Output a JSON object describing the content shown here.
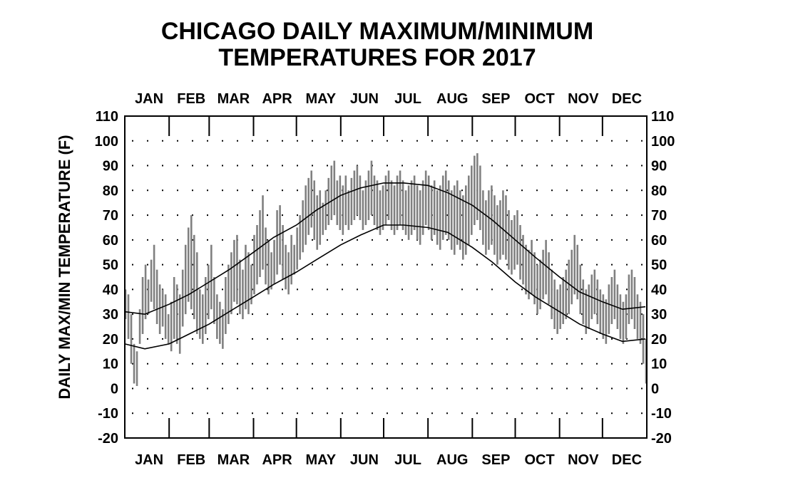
{
  "chart_data": {
    "type": "line",
    "title_lines": [
      "CHICAGO DAILY MAXIMUM/MINIMUM",
      "TEMPERATURES FOR 2017"
    ],
    "ylabel": "DAILY MAX/MIN TEMPERATURE (F)",
    "xlabel": "",
    "year": 2017,
    "x_unit": "day of year",
    "xlim": [
      1,
      365
    ],
    "ylim": [
      -20,
      110
    ],
    "y_ticks": [
      -20,
      -10,
      0,
      10,
      20,
      30,
      40,
      50,
      60,
      70,
      80,
      90,
      100,
      110
    ],
    "month_labels": [
      "JAN",
      "FEB",
      "MAR",
      "APR",
      "MAY",
      "JUN",
      "JUL",
      "AUG",
      "SEP",
      "OCT",
      "NOV",
      "DEC"
    ],
    "month_start_days": [
      1,
      32,
      60,
      91,
      121,
      152,
      182,
      213,
      244,
      274,
      305,
      335
    ],
    "grid": "dotted",
    "colors": {
      "observed_bars": "#808080",
      "normals": "#000000",
      "axes": "#000000"
    },
    "series": [
      {
        "name": "",
        "kind": "observed daily max/min range",
        "x": [
          1,
          3,
          5,
          7,
          9,
          11,
          13,
          15,
          17,
          19,
          21,
          23,
          25,
          27,
          29,
          31,
          33,
          35,
          37,
          39,
          41,
          43,
          45,
          47,
          49,
          51,
          53,
          55,
          57,
          59,
          61,
          63,
          65,
          67,
          69,
          71,
          73,
          75,
          77,
          79,
          81,
          83,
          85,
          87,
          89,
          91,
          93,
          95,
          97,
          99,
          101,
          103,
          105,
          107,
          109,
          111,
          113,
          115,
          117,
          119,
          121,
          123,
          125,
          127,
          129,
          131,
          133,
          135,
          137,
          139,
          141,
          143,
          145,
          147,
          149,
          151,
          153,
          155,
          157,
          159,
          161,
          163,
          165,
          167,
          169,
          171,
          173,
          175,
          177,
          179,
          181,
          183,
          185,
          187,
          189,
          191,
          193,
          195,
          197,
          199,
          201,
          203,
          205,
          207,
          209,
          211,
          213,
          215,
          217,
          219,
          221,
          223,
          225,
          227,
          229,
          231,
          233,
          235,
          237,
          239,
          241,
          243,
          245,
          247,
          249,
          251,
          253,
          255,
          257,
          259,
          261,
          263,
          265,
          267,
          269,
          271,
          273,
          275,
          277,
          279,
          281,
          283,
          285,
          287,
          289,
          291,
          293,
          295,
          297,
          299,
          301,
          303,
          305,
          307,
          309,
          311,
          313,
          315,
          317,
          319,
          321,
          323,
          325,
          327,
          329,
          331,
          333,
          335,
          337,
          339,
          341,
          343,
          345,
          347,
          349,
          351,
          353,
          355,
          357,
          359,
          361,
          363,
          365
        ],
        "max": [
          40,
          38,
          30,
          18,
          15,
          32,
          45,
          50,
          44,
          52,
          58,
          48,
          42,
          40,
          38,
          30,
          35,
          45,
          42,
          38,
          48,
          58,
          65,
          70,
          62,
          55,
          40,
          38,
          45,
          50,
          58,
          45,
          38,
          35,
          32,
          45,
          50,
          55,
          60,
          62,
          52,
          48,
          58,
          55,
          50,
          62,
          66,
          72,
          78,
          65,
          60,
          55,
          60,
          72,
          74,
          66,
          58,
          55,
          62,
          58,
          65,
          70,
          76,
          82,
          85,
          88,
          84,
          78,
          80,
          75,
          80,
          85,
          90,
          92,
          84,
          86,
          82,
          86,
          80,
          85,
          88,
          90,
          86,
          80,
          84,
          88,
          92,
          86,
          84,
          80,
          82,
          86,
          88,
          84,
          82,
          86,
          88,
          84,
          80,
          82,
          84,
          86,
          82,
          80,
          84,
          88,
          86,
          82,
          84,
          80,
          82,
          86,
          88,
          84,
          80,
          82,
          84,
          80,
          78,
          82,
          86,
          90,
          94,
          95,
          90,
          80,
          76,
          80,
          82,
          78,
          74,
          76,
          80,
          78,
          72,
          68,
          70,
          72,
          66,
          62,
          58,
          56,
          60,
          55,
          50,
          52,
          56,
          60,
          55,
          48,
          44,
          40,
          42,
          45,
          48,
          52,
          56,
          62,
          58,
          50,
          44,
          40,
          42,
          46,
          48,
          44,
          40,
          38,
          36,
          42,
          45,
          48,
          42,
          38,
          35,
          38,
          46,
          48,
          45,
          38,
          35,
          30,
          20,
          15,
          12
        ],
        "min": [
          28,
          20,
          10,
          2,
          1,
          18,
          22,
          28,
          30,
          35,
          32,
          26,
          22,
          25,
          20,
          18,
          15,
          20,
          18,
          14,
          25,
          30,
          35,
          32,
          28,
          22,
          20,
          18,
          22,
          28,
          32,
          26,
          20,
          18,
          16,
          22,
          26,
          30,
          35,
          34,
          30,
          28,
          32,
          30,
          34,
          38,
          42,
          45,
          48,
          42,
          38,
          40,
          42,
          46,
          50,
          44,
          40,
          38,
          42,
          46,
          48,
          52,
          55,
          58,
          62,
          65,
          60,
          56,
          58,
          62,
          64,
          66,
          68,
          70,
          66,
          64,
          62,
          66,
          64,
          66,
          68,
          70,
          68,
          64,
          66,
          68,
          70,
          66,
          64,
          62,
          64,
          66,
          68,
          64,
          62,
          64,
          66,
          64,
          62,
          60,
          62,
          64,
          60,
          58,
          62,
          66,
          64,
          60,
          62,
          58,
          56,
          60,
          62,
          60,
          56,
          54,
          58,
          56,
          52,
          54,
          58,
          62,
          66,
          68,
          64,
          58,
          54,
          56,
          58,
          54,
          50,
          52,
          54,
          52,
          48,
          46,
          48,
          50,
          44,
          42,
          38,
          36,
          38,
          34,
          30,
          32,
          36,
          38,
          34,
          28,
          24,
          22,
          24,
          26,
          28,
          30,
          34,
          38,
          36,
          30,
          26,
          22,
          24,
          28,
          30,
          26,
          22,
          20,
          18,
          22,
          26,
          28,
          24,
          20,
          18,
          20,
          26,
          28,
          24,
          20,
          18,
          10,
          2,
          0,
          -3
        ]
      },
      {
        "name": "",
        "kind": "normal high",
        "x": [
          1,
          15,
          32,
          46,
          60,
          74,
          91,
          105,
          121,
          135,
          152,
          166,
          182,
          196,
          213,
          227,
          244,
          258,
          274,
          288,
          305,
          319,
          335,
          349,
          365
        ],
        "y": [
          31,
          30,
          34,
          38,
          43,
          48,
          55,
          61,
          66,
          72,
          78,
          81,
          83,
          83,
          82,
          79,
          74,
          68,
          60,
          53,
          45,
          39,
          35,
          32,
          33
        ]
      },
      {
        "name": "",
        "kind": "normal low",
        "x": [
          1,
          15,
          32,
          46,
          60,
          74,
          91,
          105,
          121,
          135,
          152,
          166,
          182,
          196,
          213,
          227,
          244,
          258,
          274,
          288,
          305,
          319,
          335,
          349,
          365
        ],
        "y": [
          18,
          16,
          18,
          22,
          26,
          31,
          37,
          42,
          47,
          52,
          58,
          62,
          66,
          66,
          65,
          63,
          57,
          51,
          43,
          37,
          31,
          26,
          22,
          19,
          20
        ]
      }
    ]
  }
}
